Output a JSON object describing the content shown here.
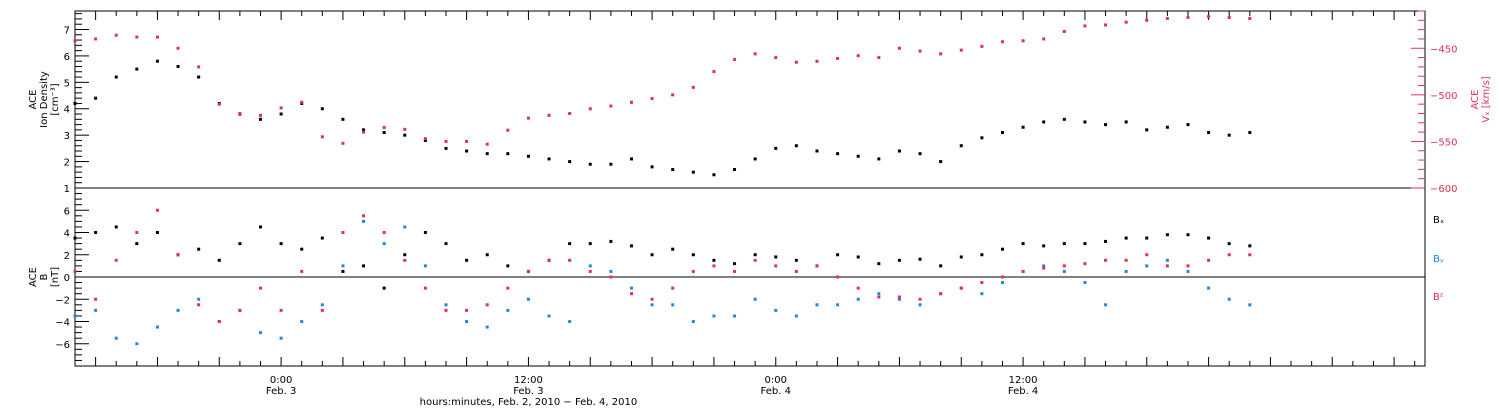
{
  "chart_data": [
    {
      "type": "scatter",
      "panel": "top",
      "ylabel_left": [
        "ACE",
        "Ion Density",
        "[cm⁻³]"
      ],
      "ylabel_right": [
        "ACE",
        "Vₓ",
        "[km/s]"
      ],
      "left_axis": {
        "ylim": [
          1,
          7.7
        ],
        "ticks": [
          1,
          2,
          3,
          4,
          5,
          6,
          7
        ]
      },
      "right_axis": {
        "ylim": [
          -600,
          -410
        ],
        "ticks": [
          -600,
          -550,
          -500,
          -450
        ],
        "tick_labels": [
          "−600",
          "−550",
          "−500",
          "−450"
        ]
      },
      "series": [
        {
          "axis": "left",
          "color": "#000000",
          "x_hours": [
            0,
            1,
            2,
            3,
            4,
            5,
            6,
            7,
            8,
            9,
            10,
            11,
            12,
            13,
            14,
            15,
            16,
            17,
            18,
            19,
            20,
            21,
            22,
            23,
            24,
            25,
            26,
            27,
            28,
            29,
            30,
            31,
            32,
            33,
            34,
            35,
            36,
            37,
            38,
            39,
            40,
            41,
            42,
            43,
            44,
            45,
            46,
            47,
            48,
            49,
            50,
            51,
            52,
            53,
            54,
            55,
            56,
            57
          ],
          "values": [
            4.2,
            4.4,
            5.2,
            5.5,
            5.8,
            5.6,
            5.2,
            4.2,
            3.8,
            3.6,
            3.8,
            4.2,
            4.0,
            3.6,
            3.2,
            3.1,
            3.0,
            2.8,
            2.5,
            2.4,
            2.3,
            2.3,
            2.2,
            2.1,
            2.0,
            1.9,
            1.9,
            2.1,
            1.8,
            1.7,
            1.6,
            1.5,
            1.7,
            2.1,
            2.5,
            2.6,
            2.4,
            2.3,
            2.2,
            2.1,
            2.4,
            2.3,
            2.0,
            2.6,
            2.9,
            3.1,
            3.3,
            3.5,
            3.6,
            3.5,
            3.4,
            3.5,
            3.2,
            3.3,
            3.4,
            3.1,
            3.0,
            3.1
          ]
        },
        {
          "axis": "right",
          "color": "#e0305a",
          "x_hours": [
            0,
            1,
            2,
            3,
            4,
            5,
            6,
            7,
            8,
            9,
            10,
            11,
            12,
            13,
            14,
            15,
            16,
            17,
            18,
            19,
            20,
            21,
            22,
            23,
            24,
            25,
            26,
            27,
            28,
            29,
            30,
            31,
            32,
            33,
            34,
            35,
            36,
            37,
            38,
            39,
            40,
            41,
            42,
            43,
            44,
            45,
            46,
            47,
            48,
            49,
            50,
            51,
            52,
            53,
            54,
            55,
            56,
            57
          ],
          "values": [
            -442,
            -440,
            -436,
            -438,
            -438,
            -450,
            -470,
            -510,
            -520,
            -522,
            -514,
            -508,
            -545,
            -552,
            -540,
            -535,
            -537,
            -547,
            -550,
            -550,
            -553,
            -538,
            -525,
            -522,
            -520,
            -515,
            -512,
            -508,
            -504,
            -500,
            -492,
            -475,
            -462,
            -456,
            -460,
            -465,
            -464,
            -461,
            -458,
            -460,
            -450,
            -453,
            -456,
            -452,
            -448,
            -443,
            -442,
            -440,
            -432,
            -426,
            -425,
            -422,
            -420,
            -418,
            -417,
            -416,
            -417,
            -418
          ]
        }
      ]
    },
    {
      "type": "scatter",
      "panel": "bottom",
      "ylabel_left": [
        "ACE",
        "B",
        "[nT]"
      ],
      "ylim": [
        -8,
        8
      ],
      "ticks": [
        -6,
        -4,
        -2,
        0,
        2,
        4,
        6
      ],
      "tick_labels": [
        "−6",
        "−4",
        "−2",
        "0",
        "2",
        "4",
        "6"
      ],
      "legend": [
        "Bₓ",
        "Bᵧ",
        "Bᶻ"
      ],
      "series": [
        {
          "name": "Bₓ",
          "color": "#000000",
          "x_hours": [
            0,
            1,
            2,
            3,
            4,
            5,
            6,
            7,
            8,
            9,
            10,
            11,
            12,
            13,
            14,
            15,
            16,
            17,
            18,
            19,
            20,
            21,
            22,
            23,
            24,
            25,
            26,
            27,
            28,
            29,
            30,
            31,
            32,
            33,
            34,
            35,
            36,
            37,
            38,
            39,
            40,
            41,
            42,
            43,
            44,
            45,
            46,
            47,
            48,
            49,
            50,
            51,
            52,
            53,
            54,
            55,
            56,
            57
          ],
          "values": [
            3.5,
            4.0,
            4.5,
            3.0,
            4.0,
            2.0,
            2.5,
            1.5,
            3.0,
            4.5,
            3.0,
            2.5,
            3.5,
            0.5,
            1.0,
            -1.0,
            2.0,
            4.0,
            3.0,
            1.5,
            2.0,
            1.0,
            0.5,
            1.5,
            3.0,
            3.0,
            3.2,
            2.8,
            2.0,
            2.5,
            2.0,
            1.5,
            1.2,
            2.0,
            1.8,
            1.5,
            1.0,
            2.0,
            1.8,
            1.2,
            1.5,
            1.6,
            1.0,
            1.8,
            2.0,
            2.5,
            3.0,
            2.8,
            3.0,
            3.0,
            3.2,
            3.5,
            3.5,
            3.8,
            3.8,
            3.5,
            3.0,
            2.8
          ]
        },
        {
          "name": "Bᵧ",
          "color": "#1e88e5",
          "x_hours": [
            0,
            1,
            2,
            3,
            4,
            5,
            6,
            7,
            8,
            9,
            10,
            11,
            12,
            13,
            14,
            15,
            16,
            17,
            18,
            19,
            20,
            21,
            22,
            23,
            24,
            25,
            26,
            27,
            28,
            29,
            30,
            31,
            32,
            33,
            34,
            35,
            36,
            37,
            38,
            39,
            40,
            41,
            42,
            43,
            44,
            45,
            46,
            47,
            48,
            49,
            50,
            51,
            52,
            53,
            54,
            55,
            56,
            57
          ],
          "values": [
            -3.5,
            -3.0,
            -5.5,
            -6.0,
            -4.5,
            -3.0,
            -2.0,
            -4.0,
            -3.0,
            -5.0,
            -5.5,
            -4.0,
            -2.5,
            1.0,
            5.0,
            3.0,
            4.5,
            1.0,
            -2.5,
            -4.0,
            -4.5,
            -3.0,
            -2.0,
            -3.5,
            -4.0,
            1.0,
            0.5,
            -1.0,
            -2.5,
            -2.5,
            -4.0,
            -3.5,
            -3.5,
            -2.0,
            -3.0,
            -3.5,
            -2.5,
            -2.5,
            -2.0,
            -1.5,
            -2.0,
            -2.5,
            -1.5,
            -1.0,
            -1.5,
            -0.5,
            0.5,
            1.0,
            0.5,
            -0.5,
            -2.5,
            0.5,
            1.0,
            1.5,
            0.5,
            -1.0,
            -2.0,
            -2.5
          ]
        },
        {
          "name": "Bᶻ",
          "color": "#e0305a",
          "x_hours": [
            0,
            1,
            2,
            3,
            4,
            5,
            6,
            7,
            8,
            9,
            10,
            11,
            12,
            13,
            14,
            15,
            16,
            17,
            18,
            19,
            20,
            21,
            22,
            23,
            24,
            25,
            26,
            27,
            28,
            29,
            30,
            31,
            32,
            33,
            34,
            35,
            36,
            37,
            38,
            39,
            40,
            41,
            42,
            43,
            44,
            45,
            46,
            47,
            48,
            49,
            50,
            51,
            52,
            53,
            54,
            55,
            56,
            57
          ],
          "values": [
            0.5,
            -2.0,
            1.5,
            4.0,
            6.0,
            2.0,
            -2.5,
            -4.0,
            -3.0,
            -1.0,
            -3.0,
            0.5,
            -3.0,
            4.0,
            5.5,
            4.0,
            1.5,
            -1.0,
            -3.0,
            -3.0,
            -2.5,
            -1.0,
            0.5,
            1.5,
            1.5,
            0.5,
            0.0,
            -1.5,
            -2.0,
            -1.0,
            0.5,
            1.0,
            0.5,
            1.5,
            1.0,
            0.5,
            1.0,
            0.0,
            -1.0,
            -1.8,
            -1.8,
            -2.0,
            -1.5,
            -1.0,
            -0.5,
            0.0,
            0.5,
            0.8,
            1.0,
            1.2,
            1.5,
            1.5,
            2.0,
            1.0,
            1.0,
            1.5,
            2.0,
            2.0
          ]
        }
      ]
    }
  ],
  "x_axis": {
    "range_hours": [
      0,
      65.5
    ],
    "tick_labels": [
      {
        "hour": 10,
        "time": "0:00",
        "date": "Feb. 3"
      },
      {
        "hour": 22,
        "time": "12:00",
        "date": "Feb. 3"
      },
      {
        "hour": 34,
        "time": "0:00",
        "date": "Feb. 4"
      },
      {
        "hour": 46,
        "time": "12:00",
        "date": "Feb. 4"
      }
    ],
    "xlabel": "hours:minutes, Feb.  2, 2010 − Feb.  4, 2010"
  },
  "colors": {
    "black": "#000000",
    "red": "#e0305a",
    "blue": "#1e88e5"
  }
}
